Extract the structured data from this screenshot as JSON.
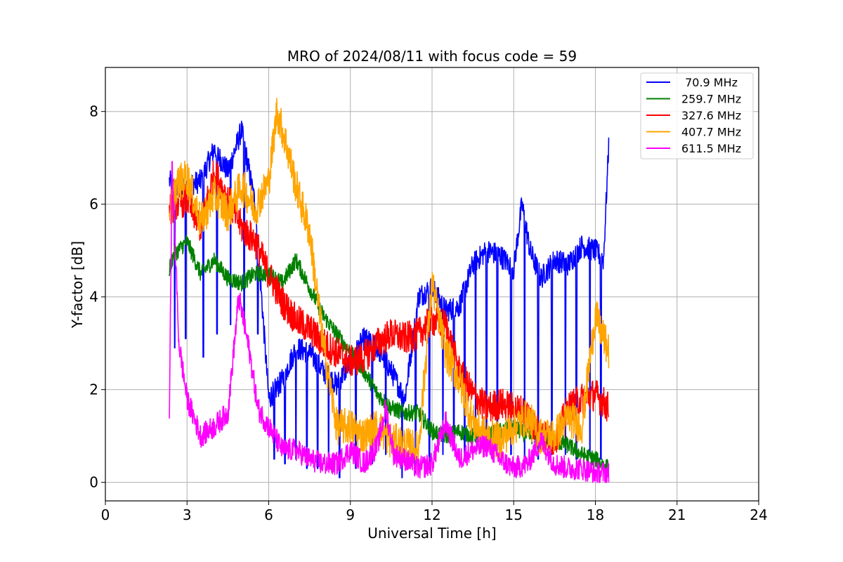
{
  "chart_data": {
    "type": "line",
    "title": "MRO of 2024/08/11 with focus code = 59",
    "xlabel": "Universal Time [h]",
    "ylabel": "Y-factor [dB]",
    "xlim": [
      0,
      24
    ],
    "ylim": [
      -0.4,
      8.95
    ],
    "x_ticks": [
      0,
      3,
      6,
      9,
      12,
      15,
      18,
      21,
      24
    ],
    "y_ticks": [
      0,
      2,
      4,
      6,
      8
    ],
    "grid": true,
    "legend_position": "top-right",
    "series": [
      {
        "name": " 70.9 MHz",
        "color": "#0000ff",
        "points": [
          [
            2.35,
            6.5
          ],
          [
            2.6,
            6.3
          ],
          [
            3.0,
            6.4
          ],
          [
            3.5,
            6.5
          ],
          [
            4.0,
            7.2
          ],
          [
            4.5,
            6.7
          ],
          [
            5.0,
            7.6
          ],
          [
            5.5,
            6.0
          ],
          [
            6.0,
            1.8
          ],
          [
            6.5,
            2.2
          ],
          [
            7.0,
            2.9
          ],
          [
            7.5,
            2.8
          ],
          [
            8.0,
            2.4
          ],
          [
            8.5,
            2.1
          ],
          [
            9.0,
            2.6
          ],
          [
            9.5,
            3.1
          ],
          [
            10.0,
            2.9
          ],
          [
            10.5,
            2.4
          ],
          [
            11.0,
            1.8
          ],
          [
            11.5,
            4.0
          ],
          [
            12.0,
            4.2
          ],
          [
            12.5,
            3.7
          ],
          [
            13.0,
            3.8
          ],
          [
            13.5,
            4.7
          ],
          [
            14.0,
            5.0
          ],
          [
            14.5,
            4.9
          ],
          [
            15.0,
            4.6
          ],
          [
            15.3,
            6.0
          ],
          [
            15.6,
            5.0
          ],
          [
            16.0,
            4.4
          ],
          [
            16.5,
            4.8
          ],
          [
            17.0,
            4.7
          ],
          [
            17.5,
            5.1
          ],
          [
            18.0,
            5.0
          ],
          [
            18.3,
            4.8
          ],
          [
            18.5,
            7.4
          ]
        ],
        "dips": [
          [
            2.55,
            2.9
          ],
          [
            2.95,
            3.1
          ],
          [
            3.6,
            2.7
          ],
          [
            4.1,
            3.2
          ],
          [
            4.6,
            3.4
          ],
          [
            5.1,
            3.5
          ],
          [
            5.6,
            3.2
          ],
          [
            6.2,
            0.5
          ],
          [
            6.6,
            0.4
          ],
          [
            7.0,
            0.5
          ],
          [
            7.4,
            0.3
          ],
          [
            7.8,
            0.3
          ],
          [
            8.2,
            0.3
          ],
          [
            8.6,
            0.1
          ],
          [
            9.2,
            0.3
          ],
          [
            9.8,
            0.4
          ],
          [
            10.3,
            0.6
          ],
          [
            10.9,
            0.1
          ],
          [
            11.4,
            0.2
          ],
          [
            11.9,
            0.4
          ],
          [
            12.4,
            0.6
          ],
          [
            12.8,
            0.7
          ],
          [
            13.2,
            0.5
          ],
          [
            13.6,
            0.9
          ],
          [
            14.0,
            0.8
          ],
          [
            14.4,
            0.7
          ],
          [
            14.9,
            0.6
          ],
          [
            15.4,
            0.4
          ],
          [
            15.9,
            0.5
          ],
          [
            16.4,
            0.6
          ],
          [
            16.9,
            0.6
          ],
          [
            17.3,
            0.5
          ],
          [
            17.8,
            0.6
          ],
          [
            18.2,
            0.5
          ]
        ]
      },
      {
        "name": "259.7 MHz",
        "color": "#008000",
        "points": [
          [
            2.35,
            4.6
          ],
          [
            2.5,
            4.9
          ],
          [
            3.0,
            5.2
          ],
          [
            3.5,
            4.5
          ],
          [
            4.0,
            4.8
          ],
          [
            4.5,
            4.4
          ],
          [
            5.0,
            4.3
          ],
          [
            5.5,
            4.5
          ],
          [
            6.0,
            4.5
          ],
          [
            6.5,
            4.3
          ],
          [
            7.0,
            4.8
          ],
          [
            7.5,
            4.2
          ],
          [
            8.0,
            3.6
          ],
          [
            8.5,
            3.2
          ],
          [
            9.0,
            2.8
          ],
          [
            9.5,
            2.4
          ],
          [
            10.0,
            1.9
          ],
          [
            10.5,
            1.6
          ],
          [
            11.0,
            1.5
          ],
          [
            11.5,
            1.5
          ],
          [
            12.0,
            1.1
          ],
          [
            12.5,
            1.0
          ],
          [
            13.0,
            1.1
          ],
          [
            13.5,
            1.0
          ],
          [
            14.0,
            1.0
          ],
          [
            14.5,
            1.1
          ],
          [
            15.0,
            1.2
          ],
          [
            15.5,
            1.0
          ],
          [
            16.0,
            1.0
          ],
          [
            16.5,
            0.9
          ],
          [
            17.0,
            0.8
          ],
          [
            17.5,
            0.6
          ],
          [
            18.0,
            0.5
          ],
          [
            18.5,
            0.3
          ]
        ]
      },
      {
        "name": "327.6 MHz",
        "color": "#ff0000",
        "points": [
          [
            2.35,
            5.9
          ],
          [
            2.6,
            6.0
          ],
          [
            3.0,
            6.1
          ],
          [
            3.5,
            5.5
          ],
          [
            4.0,
            6.7
          ],
          [
            4.5,
            6.1
          ],
          [
            5.0,
            5.5
          ],
          [
            5.5,
            5.2
          ],
          [
            6.0,
            4.5
          ],
          [
            6.5,
            3.9
          ],
          [
            7.0,
            3.5
          ],
          [
            7.5,
            3.3
          ],
          [
            8.0,
            3.0
          ],
          [
            8.5,
            2.8
          ],
          [
            9.0,
            2.6
          ],
          [
            9.5,
            2.7
          ],
          [
            10.0,
            3.0
          ],
          [
            10.5,
            3.2
          ],
          [
            11.0,
            3.1
          ],
          [
            11.5,
            3.2
          ],
          [
            12.0,
            3.5
          ],
          [
            12.5,
            3.4
          ],
          [
            13.0,
            2.4
          ],
          [
            13.5,
            1.9
          ],
          [
            14.0,
            1.6
          ],
          [
            14.5,
            1.7
          ],
          [
            15.0,
            1.6
          ],
          [
            15.5,
            1.5
          ],
          [
            16.0,
            1.0
          ],
          [
            16.5,
            0.9
          ],
          [
            17.0,
            1.6
          ],
          [
            17.5,
            1.8
          ],
          [
            18.0,
            1.9
          ],
          [
            18.5,
            1.6
          ]
        ]
      },
      {
        "name": "407.7 MHz",
        "color": "#ffa500",
        "points": [
          [
            2.35,
            5.8
          ],
          [
            2.6,
            6.4
          ],
          [
            3.0,
            6.6
          ],
          [
            3.5,
            5.6
          ],
          [
            4.0,
            6.2
          ],
          [
            4.5,
            5.8
          ],
          [
            5.0,
            6.4
          ],
          [
            5.5,
            5.9
          ],
          [
            6.0,
            6.5
          ],
          [
            6.3,
            8.0
          ],
          [
            6.6,
            7.4
          ],
          [
            7.0,
            6.4
          ],
          [
            7.5,
            5.4
          ],
          [
            8.0,
            3.0
          ],
          [
            8.5,
            1.2
          ],
          [
            9.0,
            1.2
          ],
          [
            9.5,
            1.0
          ],
          [
            10.0,
            1.2
          ],
          [
            10.5,
            0.9
          ],
          [
            11.0,
            0.8
          ],
          [
            11.5,
            0.7
          ],
          [
            12.0,
            4.3
          ],
          [
            12.5,
            2.8
          ],
          [
            13.0,
            2.2
          ],
          [
            13.5,
            1.3
          ],
          [
            14.0,
            1.0
          ],
          [
            14.5,
            0.9
          ],
          [
            15.0,
            1.2
          ],
          [
            15.5,
            1.4
          ],
          [
            16.0,
            1.0
          ],
          [
            16.5,
            1.0
          ],
          [
            17.0,
            1.4
          ],
          [
            17.5,
            1.2
          ],
          [
            18.0,
            3.6
          ],
          [
            18.5,
            2.8
          ]
        ]
      },
      {
        "name": "611.5 MHz",
        "color": "#ff00ff",
        "points": [
          [
            2.35,
            1.4
          ],
          [
            2.45,
            6.9
          ],
          [
            2.7,
            3.0
          ],
          [
            3.0,
            1.8
          ],
          [
            3.5,
            1.0
          ],
          [
            4.0,
            1.2
          ],
          [
            4.5,
            1.5
          ],
          [
            4.9,
            4.0
          ],
          [
            5.3,
            2.8
          ],
          [
            5.6,
            1.6
          ],
          [
            6.0,
            1.2
          ],
          [
            6.5,
            0.7
          ],
          [
            7.0,
            0.7
          ],
          [
            7.5,
            0.5
          ],
          [
            8.0,
            0.4
          ],
          [
            8.5,
            0.4
          ],
          [
            9.0,
            0.7
          ],
          [
            9.5,
            0.4
          ],
          [
            10.0,
            0.8
          ],
          [
            10.3,
            1.6
          ],
          [
            10.6,
            0.6
          ],
          [
            11.0,
            0.5
          ],
          [
            11.5,
            0.3
          ],
          [
            12.0,
            0.4
          ],
          [
            12.5,
            1.3
          ],
          [
            13.0,
            0.5
          ],
          [
            13.5,
            0.7
          ],
          [
            14.0,
            0.8
          ],
          [
            14.5,
            0.5
          ],
          [
            15.0,
            0.3
          ],
          [
            15.5,
            0.4
          ],
          [
            16.0,
            0.9
          ],
          [
            16.5,
            0.4
          ],
          [
            17.0,
            0.3
          ],
          [
            17.5,
            0.3
          ],
          [
            18.0,
            0.2
          ],
          [
            18.5,
            0.2
          ]
        ]
      }
    ]
  }
}
